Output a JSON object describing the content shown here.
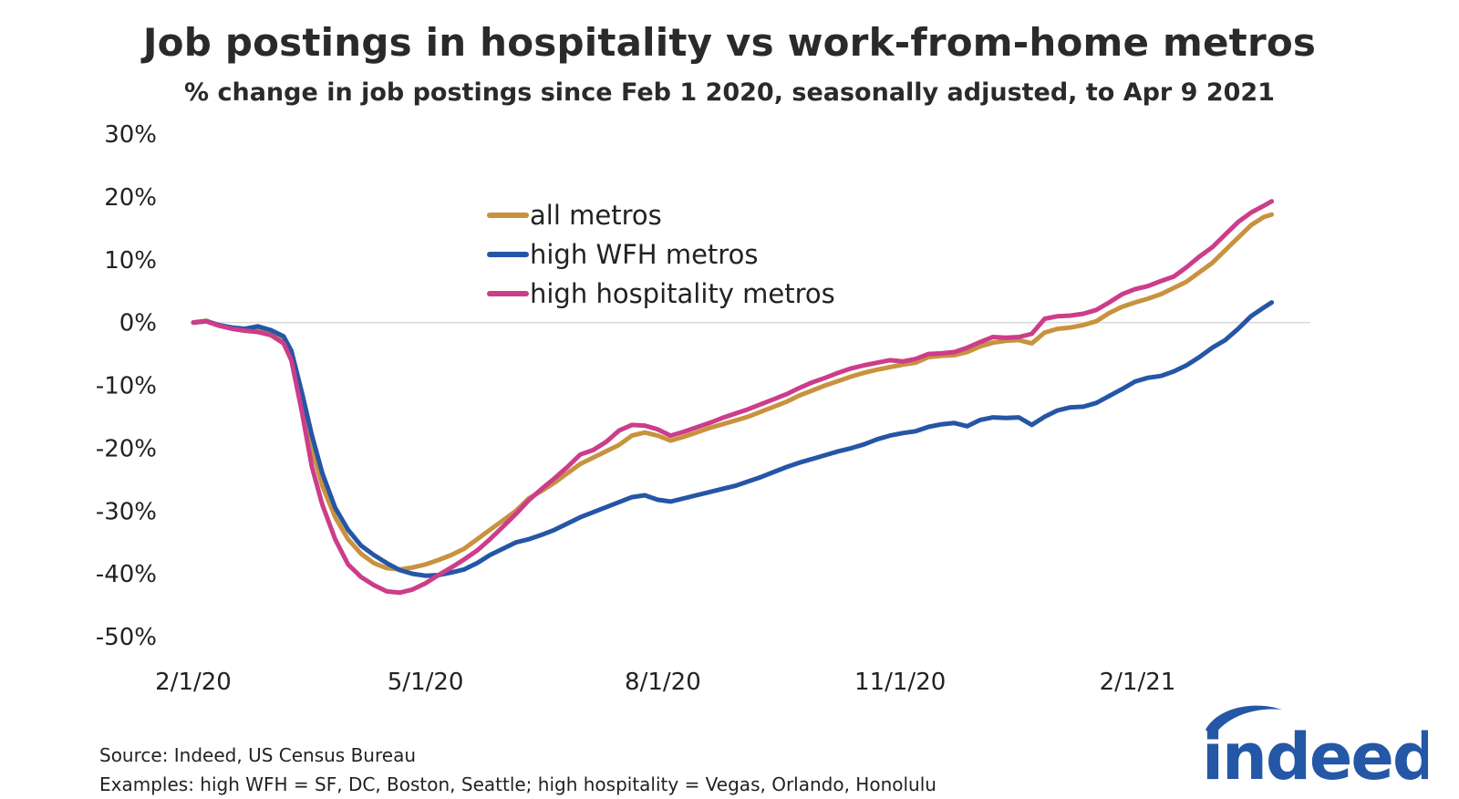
{
  "title": "Job postings in hospitality vs work-from-home metros",
  "subtitle": "% change in job postings since Feb 1 2020, seasonally adjusted, to Apr 9 2021",
  "footnotes": {
    "source": "Source: Indeed, US Census Bureau",
    "examples": "Examples: high WFH = SF, DC, Boston, Seattle; high hospitality = Vegas, Orlando, Honolulu"
  },
  "logo": {
    "text": "indeed",
    "color": "#2557a7"
  },
  "chart_data": {
    "type": "line",
    "title": "Job postings in hospitality vs work-from-home metros",
    "xlabel": "",
    "ylabel": "",
    "x_unit": "days since 2/1/20",
    "x_range": [
      0,
      433
    ],
    "ylim": [
      -50,
      30
    ],
    "y_ticks": [
      30,
      20,
      10,
      0,
      -10,
      -20,
      -30,
      -40,
      -50
    ],
    "y_tick_labels": [
      "30%",
      "20%",
      "10%",
      "0%",
      "-10%",
      "-20%",
      "-30%",
      "-40%",
      "-50%"
    ],
    "x_ticks": [
      0,
      90,
      182,
      274,
      366
    ],
    "x_tick_labels": [
      "2/1/20",
      "5/1/20",
      "8/1/20",
      "11/1/20",
      "2/1/21"
    ],
    "zero_line": true,
    "grid": false,
    "legend_position": "top-center",
    "series": [
      {
        "name": "all metros",
        "color": "#c8923e",
        "points": [
          [
            0,
            0
          ],
          [
            5,
            0.3
          ],
          [
            10,
            -0.5
          ],
          [
            15,
            -0.9
          ],
          [
            20,
            -1.2
          ],
          [
            25,
            -1.3
          ],
          [
            30,
            -1.8
          ],
          [
            35,
            -3
          ],
          [
            38,
            -5
          ],
          [
            42,
            -12
          ],
          [
            46,
            -20
          ],
          [
            50,
            -26
          ],
          [
            55,
            -31
          ],
          [
            60,
            -34.5
          ],
          [
            65,
            -36.8
          ],
          [
            70,
            -38.3
          ],
          [
            75,
            -39.1
          ],
          [
            80,
            -39.3
          ],
          [
            85,
            -39
          ],
          [
            90,
            -38.5
          ],
          [
            95,
            -37.8
          ],
          [
            100,
            -37
          ],
          [
            105,
            -36
          ],
          [
            110,
            -34.5
          ],
          [
            115,
            -33
          ],
          [
            120,
            -31.5
          ],
          [
            125,
            -30
          ],
          [
            130,
            -28
          ],
          [
            135,
            -26.8
          ],
          [
            140,
            -25.5
          ],
          [
            145,
            -24
          ],
          [
            150,
            -22.5
          ],
          [
            155,
            -21.5
          ],
          [
            160,
            -20.5
          ],
          [
            165,
            -19.5
          ],
          [
            170,
            -18
          ],
          [
            175,
            -17.5
          ],
          [
            180,
            -18
          ],
          [
            185,
            -18.8
          ],
          [
            190,
            -18.2
          ],
          [
            195,
            -17.5
          ],
          [
            200,
            -16.8
          ],
          [
            205,
            -16.2
          ],
          [
            210,
            -15.6
          ],
          [
            215,
            -15
          ],
          [
            220,
            -14.2
          ],
          [
            225,
            -13.4
          ],
          [
            230,
            -12.6
          ],
          [
            235,
            -11.6
          ],
          [
            240,
            -10.8
          ],
          [
            245,
            -10
          ],
          [
            250,
            -9.3
          ],
          [
            255,
            -8.6
          ],
          [
            260,
            -8
          ],
          [
            265,
            -7.5
          ],
          [
            270,
            -7.1
          ],
          [
            275,
            -6.7
          ],
          [
            280,
            -6.4
          ],
          [
            285,
            -5.5
          ],
          [
            290,
            -5.3
          ],
          [
            295,
            -5.2
          ],
          [
            300,
            -4.7
          ],
          [
            305,
            -3.8
          ],
          [
            310,
            -3.2
          ],
          [
            315,
            -2.9
          ],
          [
            320,
            -2.8
          ],
          [
            325,
            -3.3
          ],
          [
            330,
            -1.6
          ],
          [
            335,
            -1.0
          ],
          [
            340,
            -0.8
          ],
          [
            345,
            -0.4
          ],
          [
            350,
            0.2
          ],
          [
            355,
            1.5
          ],
          [
            360,
            2.5
          ],
          [
            365,
            3.2
          ],
          [
            370,
            3.8
          ],
          [
            375,
            4.5
          ],
          [
            380,
            5.5
          ],
          [
            385,
            6.5
          ],
          [
            390,
            8
          ],
          [
            395,
            9.5
          ],
          [
            400,
            11.5
          ],
          [
            405,
            13.5
          ],
          [
            410,
            15.5
          ],
          [
            415,
            16.8
          ],
          [
            418,
            17.2
          ]
        ]
      },
      {
        "name": "high WFH metros",
        "color": "#2556a6",
        "points": [
          [
            0,
            0
          ],
          [
            5,
            0.2
          ],
          [
            10,
            -0.4
          ],
          [
            15,
            -0.8
          ],
          [
            20,
            -1.0
          ],
          [
            25,
            -0.6
          ],
          [
            30,
            -1.2
          ],
          [
            35,
            -2.2
          ],
          [
            38,
            -4.5
          ],
          [
            42,
            -11
          ],
          [
            46,
            -18
          ],
          [
            50,
            -24
          ],
          [
            55,
            -29.5
          ],
          [
            60,
            -33
          ],
          [
            65,
            -35.5
          ],
          [
            70,
            -37
          ],
          [
            75,
            -38.3
          ],
          [
            80,
            -39.4
          ],
          [
            85,
            -40
          ],
          [
            90,
            -40.3
          ],
          [
            95,
            -40.2
          ],
          [
            100,
            -39.8
          ],
          [
            105,
            -39.3
          ],
          [
            110,
            -38.3
          ],
          [
            115,
            -37
          ],
          [
            120,
            -36
          ],
          [
            125,
            -35
          ],
          [
            130,
            -34.5
          ],
          [
            135,
            -33.8
          ],
          [
            140,
            -33
          ],
          [
            145,
            -32
          ],
          [
            150,
            -31
          ],
          [
            155,
            -30.2
          ],
          [
            160,
            -29.4
          ],
          [
            165,
            -28.6
          ],
          [
            170,
            -27.8
          ],
          [
            175,
            -27.5
          ],
          [
            180,
            -28.2
          ],
          [
            185,
            -28.5
          ],
          [
            190,
            -28
          ],
          [
            195,
            -27.5
          ],
          [
            200,
            -27
          ],
          [
            205,
            -26.5
          ],
          [
            210,
            -26
          ],
          [
            215,
            -25.3
          ],
          [
            220,
            -24.6
          ],
          [
            225,
            -23.8
          ],
          [
            230,
            -23
          ],
          [
            235,
            -22.3
          ],
          [
            240,
            -21.7
          ],
          [
            245,
            -21.1
          ],
          [
            250,
            -20.5
          ],
          [
            255,
            -20
          ],
          [
            260,
            -19.4
          ],
          [
            265,
            -18.6
          ],
          [
            270,
            -18
          ],
          [
            275,
            -17.6
          ],
          [
            280,
            -17.3
          ],
          [
            285,
            -16.6
          ],
          [
            290,
            -16.2
          ],
          [
            295,
            -16
          ],
          [
            300,
            -16.5
          ],
          [
            305,
            -15.5
          ],
          [
            310,
            -15.1
          ],
          [
            315,
            -15.2
          ],
          [
            320,
            -15.1
          ],
          [
            325,
            -16.3
          ],
          [
            330,
            -15
          ],
          [
            335,
            -14
          ],
          [
            340,
            -13.5
          ],
          [
            345,
            -13.4
          ],
          [
            350,
            -12.8
          ],
          [
            355,
            -11.7
          ],
          [
            360,
            -10.6
          ],
          [
            365,
            -9.4
          ],
          [
            370,
            -8.8
          ],
          [
            375,
            -8.5
          ],
          [
            380,
            -7.8
          ],
          [
            385,
            -6.8
          ],
          [
            390,
            -5.5
          ],
          [
            395,
            -4
          ],
          [
            400,
            -2.8
          ],
          [
            405,
            -1
          ],
          [
            410,
            1
          ],
          [
            415,
            2.4
          ],
          [
            418,
            3.2
          ]
        ]
      },
      {
        "name": "high hospitality metros",
        "color": "#cc3d8a",
        "points": [
          [
            0,
            0
          ],
          [
            5,
            0.2
          ],
          [
            10,
            -0.5
          ],
          [
            15,
            -1.0
          ],
          [
            20,
            -1.3
          ],
          [
            25,
            -1.5
          ],
          [
            30,
            -2
          ],
          [
            35,
            -3.3
          ],
          [
            38,
            -6
          ],
          [
            42,
            -14
          ],
          [
            46,
            -23
          ],
          [
            50,
            -29
          ],
          [
            55,
            -34.5
          ],
          [
            60,
            -38.5
          ],
          [
            65,
            -40.5
          ],
          [
            70,
            -41.8
          ],
          [
            75,
            -42.8
          ],
          [
            80,
            -43
          ],
          [
            85,
            -42.5
          ],
          [
            90,
            -41.5
          ],
          [
            95,
            -40.2
          ],
          [
            100,
            -39
          ],
          [
            105,
            -37.7
          ],
          [
            110,
            -36.3
          ],
          [
            115,
            -34.5
          ],
          [
            120,
            -32.5
          ],
          [
            125,
            -30.5
          ],
          [
            130,
            -28.3
          ],
          [
            135,
            -26.5
          ],
          [
            140,
            -24.8
          ],
          [
            145,
            -23
          ],
          [
            150,
            -21
          ],
          [
            155,
            -20.3
          ],
          [
            160,
            -19
          ],
          [
            165,
            -17.2
          ],
          [
            170,
            -16.3
          ],
          [
            175,
            -16.4
          ],
          [
            180,
            -17
          ],
          [
            185,
            -18
          ],
          [
            190,
            -17.4
          ],
          [
            195,
            -16.7
          ],
          [
            200,
            -16
          ],
          [
            205,
            -15.2
          ],
          [
            210,
            -14.5
          ],
          [
            215,
            -13.8
          ],
          [
            220,
            -13
          ],
          [
            225,
            -12.2
          ],
          [
            230,
            -11.4
          ],
          [
            235,
            -10.4
          ],
          [
            240,
            -9.5
          ],
          [
            245,
            -8.8
          ],
          [
            250,
            -8
          ],
          [
            255,
            -7.3
          ],
          [
            260,
            -6.8
          ],
          [
            265,
            -6.4
          ],
          [
            270,
            -6
          ],
          [
            275,
            -6.2
          ],
          [
            280,
            -5.8
          ],
          [
            285,
            -5
          ],
          [
            290,
            -4.9
          ],
          [
            295,
            -4.7
          ],
          [
            300,
            -4
          ],
          [
            305,
            -3.1
          ],
          [
            310,
            -2.3
          ],
          [
            315,
            -2.4
          ],
          [
            320,
            -2.3
          ],
          [
            325,
            -1.8
          ],
          [
            330,
            0.6
          ],
          [
            335,
            1.0
          ],
          [
            340,
            1.1
          ],
          [
            345,
            1.4
          ],
          [
            350,
            2.0
          ],
          [
            355,
            3.2
          ],
          [
            360,
            4.5
          ],
          [
            365,
            5.3
          ],
          [
            370,
            5.8
          ],
          [
            375,
            6.6
          ],
          [
            380,
            7.3
          ],
          [
            385,
            8.8
          ],
          [
            390,
            10.5
          ],
          [
            395,
            12
          ],
          [
            400,
            14
          ],
          [
            405,
            16
          ],
          [
            410,
            17.5
          ],
          [
            415,
            18.6
          ],
          [
            418,
            19.3
          ]
        ]
      }
    ]
  }
}
